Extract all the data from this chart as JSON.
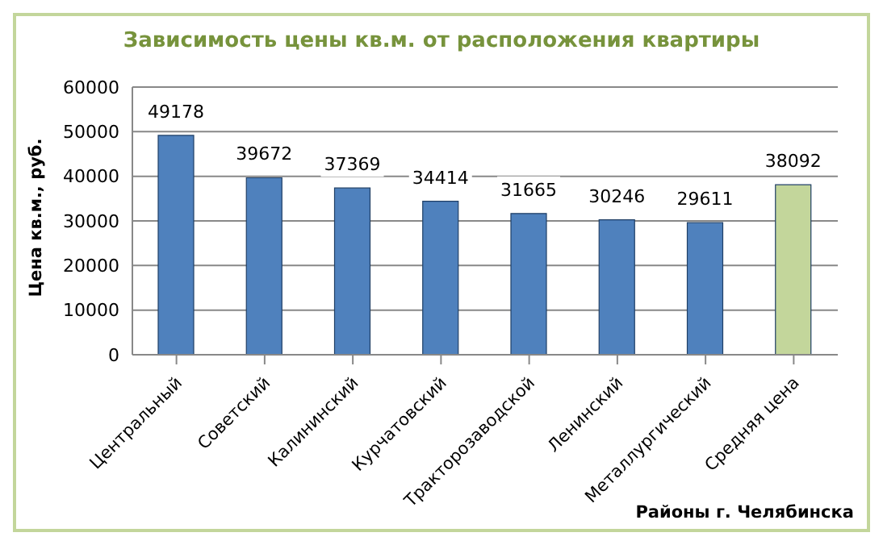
{
  "chart_data": {
    "type": "bar",
    "title": "Зависимость цены кв.м. от расположения квартиры",
    "xlabel": "Районы г. Челябинска",
    "ylabel": "Цена кв.м., руб.",
    "categories": [
      "Центральный",
      "Советский",
      "Калининский",
      "Курчатовский",
      "Тракторозаводской",
      "Ленинский",
      "Металлургический",
      "Средняя цена"
    ],
    "values": [
      49178,
      39672,
      37369,
      34414,
      31665,
      30246,
      29611,
      38092
    ],
    "colors": [
      "#4f81bd",
      "#4f81bd",
      "#4f81bd",
      "#4f81bd",
      "#4f81bd",
      "#4f81bd",
      "#4f81bd",
      "#c3d69b"
    ],
    "ylim": [
      0,
      60000
    ],
    "yticks": [
      0,
      10000,
      20000,
      30000,
      40000,
      50000,
      60000
    ],
    "grid": "y",
    "data_labels": true
  }
}
